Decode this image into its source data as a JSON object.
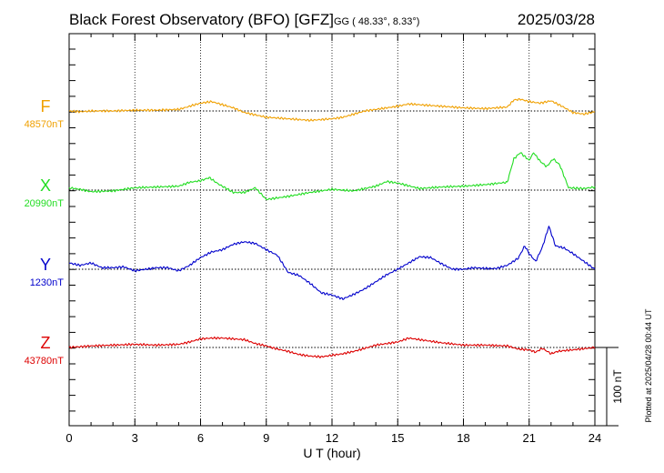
{
  "header": {
    "title": "Black Forest Observatory (BFO)  [GFZ]",
    "coords": "GG ( 48.33°,   8.33°)",
    "date": "2025/03/28"
  },
  "footer": {
    "plotted": "Plotted at 2025/04/28 00:44 UT"
  },
  "chart_data": {
    "type": "line",
    "xlabel": "U T (hour)",
    "xlim": [
      0,
      24
    ],
    "x_ticks": [
      0,
      3,
      6,
      9,
      12,
      15,
      18,
      21,
      24
    ],
    "scale_bar": {
      "label": "100 nT",
      "value_nT": 100
    },
    "y_units_per_band_nT": 100,
    "series": [
      {
        "name": "F",
        "baseline_label": "48570nT",
        "baseline_nT": 48570,
        "color": "#f0a000",
        "points": [
          [
            0,
            0
          ],
          [
            0.5,
            -1
          ],
          [
            1,
            0
          ],
          [
            2,
            0
          ],
          [
            3,
            1
          ],
          [
            4,
            1
          ],
          [
            5,
            2
          ],
          [
            5.5,
            6
          ],
          [
            6,
            10
          ],
          [
            6.5,
            12
          ],
          [
            7,
            8
          ],
          [
            7.5,
            4
          ],
          [
            8,
            -2
          ],
          [
            9,
            -8
          ],
          [
            10,
            -10
          ],
          [
            11,
            -12
          ],
          [
            12,
            -10
          ],
          [
            12.5,
            -8
          ],
          [
            13,
            -4
          ],
          [
            13.5,
            0
          ],
          [
            14,
            2
          ],
          [
            15,
            6
          ],
          [
            15.5,
            9
          ],
          [
            16,
            8
          ],
          [
            17,
            6
          ],
          [
            18,
            4
          ],
          [
            19,
            3
          ],
          [
            20,
            5
          ],
          [
            20.3,
            14
          ],
          [
            20.6,
            15
          ],
          [
            21,
            12
          ],
          [
            21.5,
            10
          ],
          [
            22,
            13
          ],
          [
            22.5,
            6
          ],
          [
            23,
            -2
          ],
          [
            23.5,
            -4
          ],
          [
            24,
            -1
          ]
        ]
      },
      {
        "name": "X",
        "baseline_label": "20990nT",
        "baseline_nT": 20990,
        "color": "#22dd22",
        "points": [
          [
            0,
            3
          ],
          [
            0.5,
            1
          ],
          [
            1,
            -2
          ],
          [
            2,
            -1
          ],
          [
            3,
            3
          ],
          [
            4,
            4
          ],
          [
            5,
            5
          ],
          [
            5.5,
            10
          ],
          [
            6,
            12
          ],
          [
            6.4,
            16
          ],
          [
            6.8,
            8
          ],
          [
            7.5,
            -3
          ],
          [
            8,
            -3
          ],
          [
            8.5,
            3
          ],
          [
            9,
            -12
          ],
          [
            9.5,
            -10
          ],
          [
            10,
            -8
          ],
          [
            11,
            -3
          ],
          [
            12,
            1
          ],
          [
            13,
            -1
          ],
          [
            14,
            5
          ],
          [
            14.5,
            11
          ],
          [
            15,
            9
          ],
          [
            16,
            2
          ],
          [
            17,
            4
          ],
          [
            18,
            5
          ],
          [
            19,
            7
          ],
          [
            20,
            10
          ],
          [
            20.3,
            40
          ],
          [
            20.6,
            48
          ],
          [
            21,
            38
          ],
          [
            21.2,
            48
          ],
          [
            21.5,
            37
          ],
          [
            21.8,
            30
          ],
          [
            22.1,
            40
          ],
          [
            22.4,
            32
          ],
          [
            22.8,
            3
          ],
          [
            23.5,
            2
          ],
          [
            24,
            4
          ]
        ]
      },
      {
        "name": "Y",
        "baseline_label": "1230nT",
        "baseline_nT": 1230,
        "color": "#0000cc",
        "points": [
          [
            0,
            8
          ],
          [
            0.5,
            5
          ],
          [
            1,
            8
          ],
          [
            1.5,
            2
          ],
          [
            2,
            2
          ],
          [
            2.5,
            3
          ],
          [
            3,
            -2
          ],
          [
            3.5,
            0
          ],
          [
            4,
            2
          ],
          [
            4.5,
            2
          ],
          [
            5,
            -2
          ],
          [
            5.5,
            5
          ],
          [
            6,
            15
          ],
          [
            6.5,
            22
          ],
          [
            7,
            25
          ],
          [
            7.5,
            32
          ],
          [
            8,
            35
          ],
          [
            8.5,
            33
          ],
          [
            9,
            25
          ],
          [
            9.5,
            18
          ],
          [
            10,
            -4
          ],
          [
            10.5,
            -8
          ],
          [
            11,
            -18
          ],
          [
            11.5,
            -30
          ],
          [
            12,
            -33
          ],
          [
            12.5,
            -38
          ],
          [
            13,
            -32
          ],
          [
            13.5,
            -25
          ],
          [
            14,
            -16
          ],
          [
            14.5,
            -7
          ],
          [
            15,
            0
          ],
          [
            15.5,
            8
          ],
          [
            16,
            16
          ],
          [
            16.5,
            15
          ],
          [
            17,
            7
          ],
          [
            17.5,
            0
          ],
          [
            18,
            0
          ],
          [
            18.5,
            2
          ],
          [
            19,
            1
          ],
          [
            19.5,
            1
          ],
          [
            20,
            5
          ],
          [
            20.5,
            14
          ],
          [
            20.8,
            30
          ],
          [
            21,
            20
          ],
          [
            21.3,
            10
          ],
          [
            21.6,
            28
          ],
          [
            21.9,
            55
          ],
          [
            22.2,
            30
          ],
          [
            22.6,
            27
          ],
          [
            23,
            20
          ],
          [
            23.5,
            10
          ],
          [
            24,
            0
          ]
        ]
      },
      {
        "name": "Z",
        "baseline_label": "43780nT",
        "baseline_nT": 43780,
        "color": "#dd0000",
        "points": [
          [
            0,
            0
          ],
          [
            0.5,
            1
          ],
          [
            1,
            2
          ],
          [
            2,
            3
          ],
          [
            3,
            4
          ],
          [
            4,
            3
          ],
          [
            5,
            4
          ],
          [
            5.5,
            7
          ],
          [
            6,
            11
          ],
          [
            6.5,
            12
          ],
          [
            7,
            12
          ],
          [
            8,
            10
          ],
          [
            8.5,
            5
          ],
          [
            9,
            2
          ],
          [
            9.5,
            -2
          ],
          [
            10,
            -5
          ],
          [
            10.5,
            -9
          ],
          [
            11,
            -11
          ],
          [
            11.5,
            -12
          ],
          [
            12,
            -10
          ],
          [
            12.5,
            -8
          ],
          [
            13,
            -5
          ],
          [
            13.5,
            -1
          ],
          [
            14,
            3
          ],
          [
            15,
            7
          ],
          [
            15.5,
            12
          ],
          [
            16,
            10
          ],
          [
            17,
            6
          ],
          [
            18,
            3
          ],
          [
            19,
            3
          ],
          [
            20,
            2
          ],
          [
            20.5,
            -2
          ],
          [
            21,
            -3
          ],
          [
            21.3,
            -6
          ],
          [
            21.6,
            -1
          ],
          [
            22,
            -8
          ],
          [
            22.3,
            -5
          ],
          [
            22.6,
            -4
          ],
          [
            23,
            -3
          ],
          [
            24,
            0
          ]
        ]
      }
    ]
  }
}
